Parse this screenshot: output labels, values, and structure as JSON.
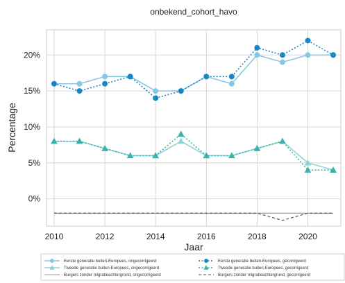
{
  "chart_data": {
    "type": "line",
    "title": "onbekend_cohort_havo",
    "xlabel": "Jaar",
    "ylabel": "Percentage",
    "x": [
      2010,
      2011,
      2012,
      2013,
      2014,
      2015,
      2016,
      2017,
      2018,
      2019,
      2020,
      2021
    ],
    "xlim": [
      2009.7,
      2021.3
    ],
    "ylim": [
      -3.8,
      23.5
    ],
    "x_ticks": [
      2010,
      2012,
      2014,
      2016,
      2018,
      2020
    ],
    "x_tick_labels": [
      "2010",
      "2012",
      "2014",
      "2016",
      "2018",
      "2020"
    ],
    "y_ticks": [
      0,
      5,
      10,
      15,
      20
    ],
    "y_tick_labels": [
      "0%",
      "5%",
      "10%",
      "15%",
      "20%"
    ],
    "grid": true,
    "legend_position": "bottom",
    "series": [
      {
        "name": "Eerste generatie buiten-Europees, ongecorrigeerd",
        "values": [
          16,
          16,
          17,
          17,
          15,
          15,
          17,
          16,
          20,
          19,
          20,
          20
        ],
        "color": "#87c9e2",
        "marker": "circle",
        "line_style": "solid"
      },
      {
        "name": "Eerste generatie buiten-Europees, gecorrigeerd",
        "values": [
          16,
          15,
          16,
          17,
          14,
          15,
          17,
          17,
          21,
          20,
          22,
          20
        ],
        "color": "#1a87c2",
        "marker": "circle",
        "line_style": "dotted"
      },
      {
        "name": "Tweede generatie buiten-Europees, ongecorrigeerd",
        "values": [
          8,
          8,
          7,
          6,
          6,
          8,
          6,
          6,
          7,
          8,
          5,
          4
        ],
        "color": "#8fd4d3",
        "marker": "triangle",
        "line_style": "solid"
      },
      {
        "name": "Tweede generatie buiten-Europees, gecorrigeerd",
        "values": [
          8,
          8,
          7,
          6,
          6,
          9,
          6,
          6,
          7,
          8,
          4,
          4
        ],
        "color": "#3db2ac",
        "marker": "triangle",
        "line_style": "dotted"
      },
      {
        "name": "Burgers zonder migratieachtergrond, ongecorrigeerd",
        "values": [
          -2,
          -2,
          -2,
          -2,
          -2,
          -2,
          -2,
          -2,
          -2,
          -2,
          -2,
          -2
        ],
        "color": "#9a9a9a",
        "marker": "none",
        "line_style": "solid"
      },
      {
        "name": "Burgers zonder migratieachtergrond, gecorrigeerd",
        "values": [
          -2,
          -2,
          -2,
          -2,
          -2,
          -2,
          -2,
          -2,
          -2,
          -3,
          -2,
          -2
        ],
        "color": "#555555",
        "marker": "none",
        "line_style": "dashed"
      }
    ]
  }
}
